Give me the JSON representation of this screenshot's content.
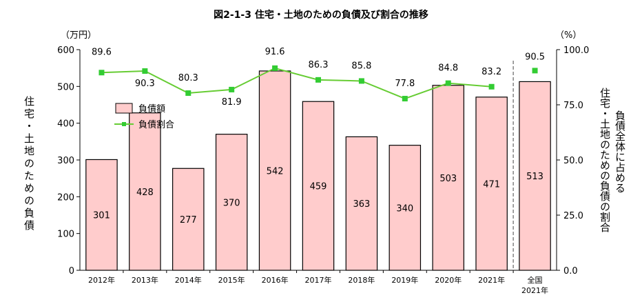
{
  "title": "図2-1-3 住宅・土地のための負債及び割合の推移",
  "axis": {
    "left_unit": "（万円）",
    "right_unit": "（%）",
    "left_label": "住宅・土地のための負債",
    "right_label_line1": "負債全体に占める",
    "right_label_line2": "住宅・土地のための負債の割合"
  },
  "legend": {
    "bar": "負債額",
    "line": "負債割合"
  },
  "colors": {
    "bar_fill": "#ffcccc",
    "bar_stroke": "#000000",
    "line": "#66cc33",
    "marker": "#33cc33"
  },
  "chart_data": {
    "type": "bar",
    "categories": [
      "2012年",
      "2013年",
      "2014年",
      "2015年",
      "2016年",
      "2017年",
      "2018年",
      "2019年",
      "2020年",
      "2021年",
      "全国\n2021年"
    ],
    "series": [
      {
        "name": "負債額",
        "axis": "left",
        "type": "bar",
        "values": [
          301,
          428,
          277,
          370,
          542,
          459,
          363,
          340,
          503,
          471,
          513
        ]
      },
      {
        "name": "負債割合",
        "axis": "right",
        "type": "line",
        "values": [
          89.6,
          90.3,
          80.3,
          81.9,
          91.6,
          86.3,
          85.8,
          77.8,
          84.8,
          83.2,
          90.5
        ],
        "line_excludes_last": true
      }
    ],
    "left_ylim": [
      0,
      600
    ],
    "left_ticks": [
      "0",
      "100",
      "200",
      "300",
      "400",
      "500",
      "600"
    ],
    "right_ylim": [
      0,
      100
    ],
    "right_ticks": [
      "0.0",
      "25.0",
      "50.0",
      "75.0",
      "100.0"
    ],
    "separator_before_last": true,
    "legend_position": "upper-left inside plot"
  }
}
